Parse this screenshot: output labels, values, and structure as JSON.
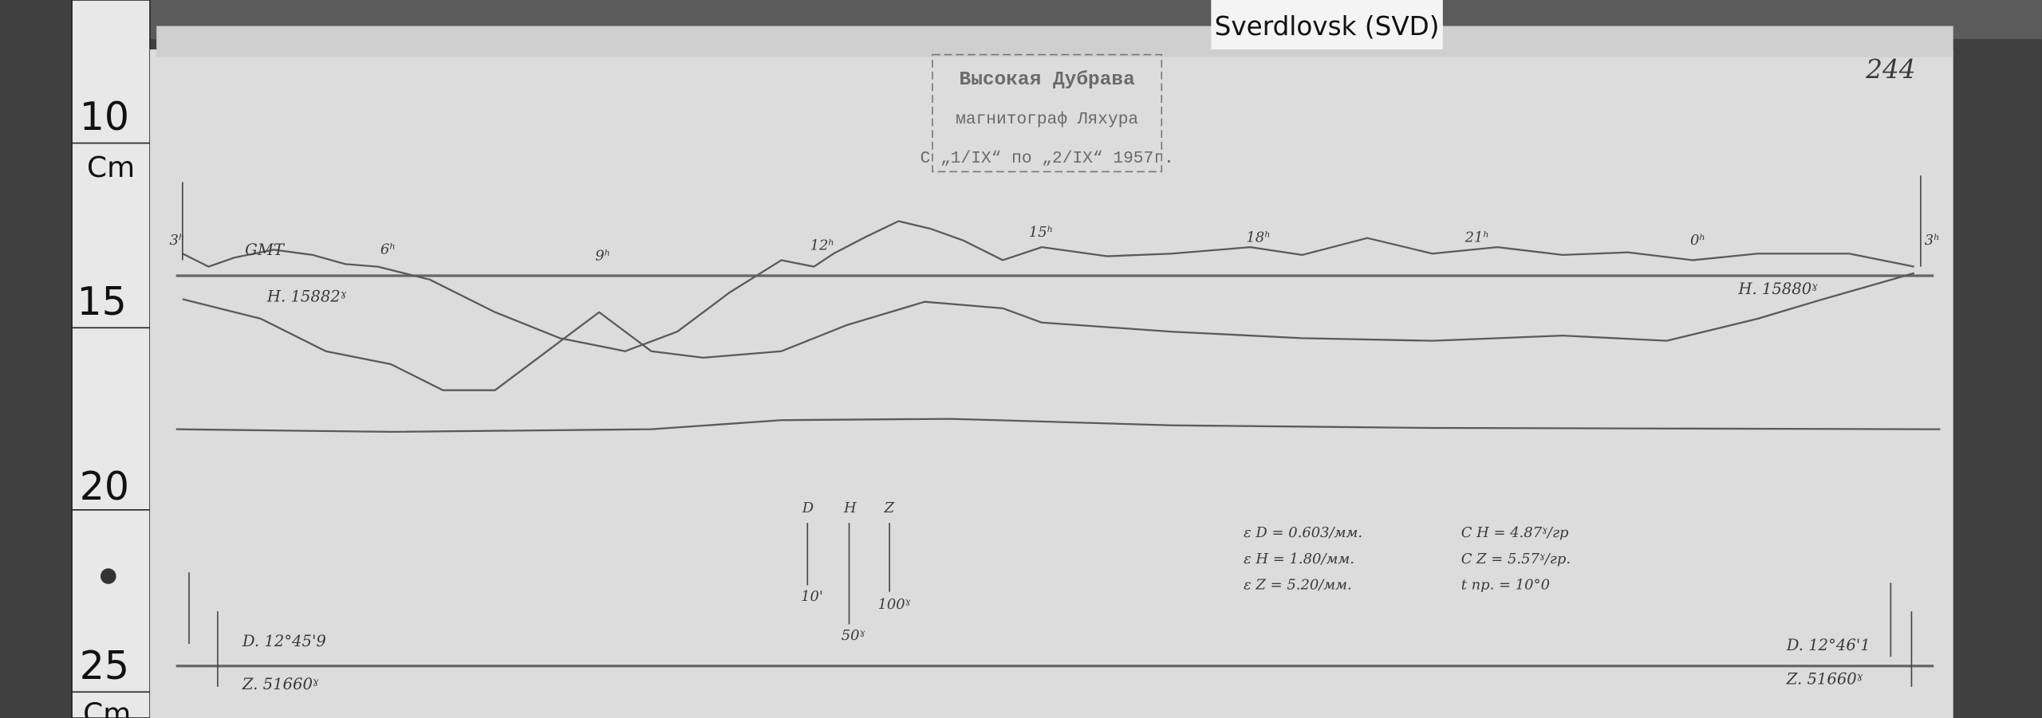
{
  "header": {
    "label": "Sverdlovsk (SVD)",
    "page_number": "244"
  },
  "stamp": {
    "lines": [
      "Высокая Дубрава",
      "магнитограф Ляхура",
      "С „1/IX“ по „2/IX“ 1957г."
    ]
  },
  "ruler": {
    "labels": [
      "10",
      "Cm",
      "15",
      "20",
      "25",
      "Cm"
    ]
  },
  "trace": {
    "time_marks": [
      "3ʰ",
      "6ʰ",
      "9ʰ",
      "12ʰ",
      "15ʰ",
      "18ʰ",
      "21ʰ",
      "0ʰ",
      "3ʰ"
    ],
    "gmt": "GMT",
    "h_left": "H. 15882ˠ",
    "h_right": "H. 15880ˠ"
  },
  "scale": {
    "labels": [
      "D",
      "H",
      "Z"
    ],
    "values": [
      "10'",
      "50ˠ",
      "100ˠ"
    ]
  },
  "constants": [
    "ε D = 0.603/мм.",
    "ε H = 1.80/мм.",
    "ε Z = 5.20/мм.",
    "C H = 4.87ˠ/гр",
    "C Z = 5.57ˠ/гр.",
    "t пр. = 10°0"
  ],
  "baseline": {
    "d_left": "D. 12°45'9",
    "z_left": "Z. 51660ˠ",
    "d_right": "D. 12°46'1",
    "z_right": "Z. 51660ˠ"
  }
}
